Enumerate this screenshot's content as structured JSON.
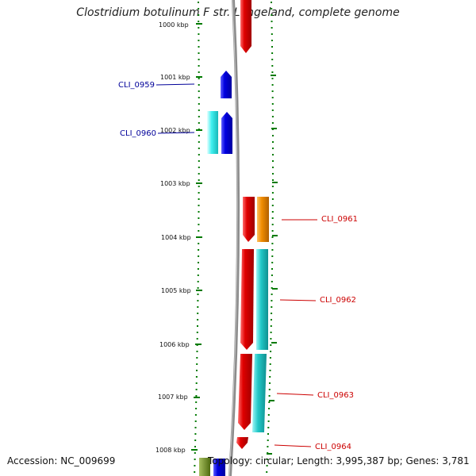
{
  "title": "Clostridium botulinum F str. Langeland, complete genome",
  "footer": {
    "accession": "Accession: NC_009699",
    "topology": "Topology: circular; Length: 3,995,387 bp; Genes: 3,781"
  },
  "colors": {
    "forward_cds": "#e00000",
    "reverse_cds": "#0000e0",
    "cyan_track": "#22c8c8",
    "orange_track": "#f08c00",
    "tick_green": "#007a00",
    "backbone": "#8c8c8c",
    "label_red": "#cc0000",
    "label_blue": "#000099"
  },
  "scale": {
    "partial_top_label": "1000 kbp",
    "ticks": [
      "1001 kbp",
      "1002 kbp",
      "1003 kbp",
      "1004 kbp",
      "1005 kbp",
      "1006 kbp",
      "1007 kbp",
      "1008 kbp"
    ]
  },
  "genes": [
    {
      "name": "CLI_0959",
      "strand": "reverse"
    },
    {
      "name": "CLI_0960",
      "strand": "reverse"
    },
    {
      "name": "CLI_0961",
      "strand": "forward"
    },
    {
      "name": "CLI_0962",
      "strand": "forward"
    },
    {
      "name": "CLI_0963",
      "strand": "forward"
    },
    {
      "name": "CLI_0964",
      "strand": "forward"
    }
  ]
}
